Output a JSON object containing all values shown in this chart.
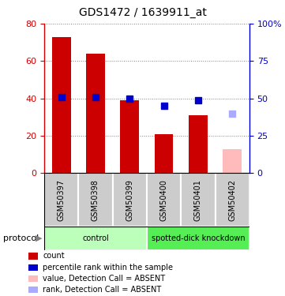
{
  "title": "GDS1472 / 1639911_at",
  "samples": [
    "GSM50397",
    "GSM50398",
    "GSM50399",
    "GSM50400",
    "GSM50401",
    "GSM50402"
  ],
  "bar_values": [
    73,
    64,
    39,
    21,
    31,
    13
  ],
  "bar_colors": [
    "#cc0000",
    "#cc0000",
    "#cc0000",
    "#cc0000",
    "#cc0000",
    "#ffbbbb"
  ],
  "rank_values": [
    51,
    51,
    50,
    45,
    49,
    40
  ],
  "rank_colors": [
    "#0000cc",
    "#0000cc",
    "#0000cc",
    "#0000cc",
    "#0000cc",
    "#aaaaff"
  ],
  "ylim_left": [
    0,
    80
  ],
  "ylim_right": [
    0,
    100
  ],
  "yticks_left": [
    0,
    20,
    40,
    60,
    80
  ],
  "ytick_labels_left": [
    "0",
    "20",
    "40",
    "60",
    "80"
  ],
  "yticks_right": [
    0,
    25,
    50,
    75,
    100
  ],
  "ytick_labels_right": [
    "0",
    "25",
    "50",
    "75",
    "100%"
  ],
  "groups": [
    {
      "label": "control",
      "indices": [
        0,
        1,
        2
      ],
      "color": "#bbffbb"
    },
    {
      "label": "spotted-dick knockdown",
      "indices": [
        3,
        4,
        5
      ],
      "color": "#55ee55"
    }
  ],
  "protocol_label": "protocol",
  "legend_items": [
    {
      "color": "#cc0000",
      "label": "count"
    },
    {
      "color": "#0000cc",
      "label": "percentile rank within the sample"
    },
    {
      "color": "#ffbbbb",
      "label": "value, Detection Call = ABSENT"
    },
    {
      "color": "#aaaaff",
      "label": "rank, Detection Call = ABSENT"
    }
  ],
  "bar_width": 0.55,
  "rank_marker_size": 6,
  "grid_linestyle": ":"
}
